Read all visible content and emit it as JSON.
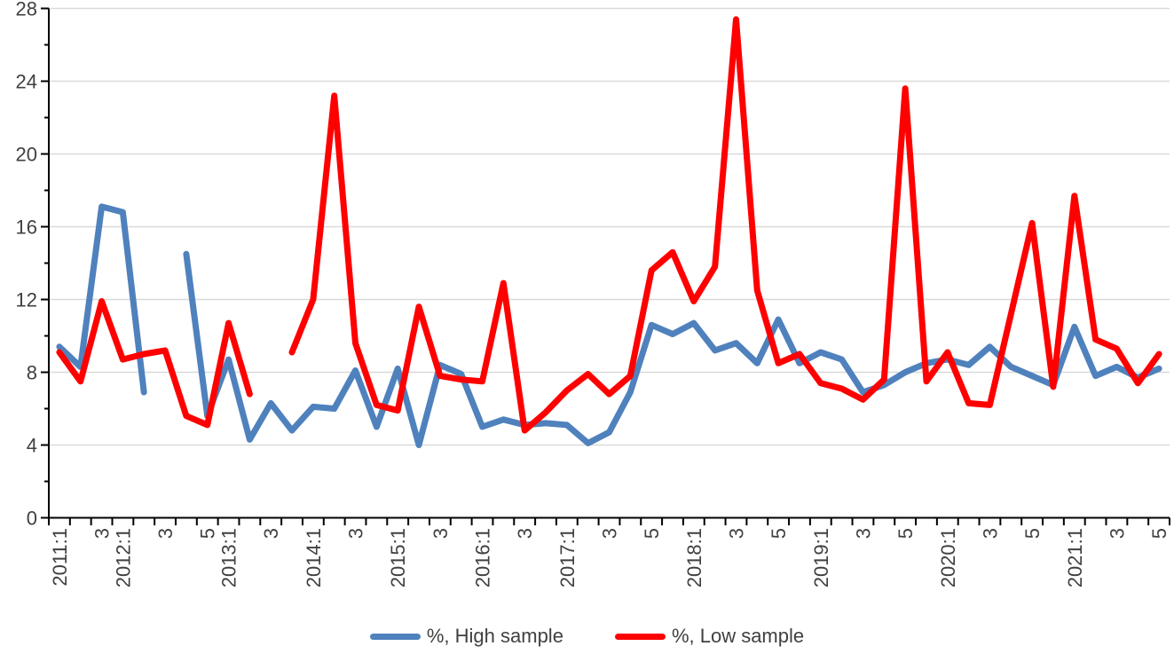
{
  "chart_data": {
    "type": "line",
    "title": "",
    "xlabel": "",
    "ylabel": "",
    "ylim": [
      0,
      28
    ],
    "y_major_step": 4,
    "y_minor_step": 2,
    "y_tick_labels": [
      "0",
      "4",
      "8",
      "12",
      "16",
      "20",
      "24",
      "28"
    ],
    "grid": "horizontal",
    "legend_position": "bottom",
    "n_points": 53,
    "categories": [
      "2011:1",
      "",
      "3",
      "2012:1",
      "",
      "3",
      "",
      "5",
      "2013:1",
      "",
      "3",
      "",
      "2014:1",
      "",
      "3",
      "",
      "2015:1",
      "",
      "3",
      "",
      "2016:1",
      "",
      "3",
      "",
      "2017:1",
      "",
      "3",
      "",
      "5",
      "",
      "2018:1",
      "",
      "3",
      "",
      "5",
      "",
      "2019:1",
      "",
      "3",
      "",
      "5",
      "",
      "2020:1",
      "",
      "3",
      "",
      "5",
      "",
      "2021:1",
      "",
      "3",
      "",
      "5"
    ],
    "series": [
      {
        "name": "%, High sample",
        "color": "#4F81BD",
        "values": [
          9.4,
          8.3,
          17.1,
          16.8,
          6.9,
          null,
          14.5,
          5.6,
          8.7,
          4.3,
          6.3,
          4.8,
          6.1,
          6.0,
          8.1,
          5.0,
          8.2,
          4.0,
          8.4,
          7.9,
          5.0,
          5.4,
          5.1,
          5.2,
          5.1,
          4.1,
          4.7,
          6.9,
          10.6,
          10.1,
          10.7,
          9.2,
          9.6,
          8.5,
          10.9,
          8.5,
          9.1,
          8.7,
          6.9,
          7.3,
          8.0,
          8.5,
          8.7,
          8.4,
          9.4,
          8.3,
          7.8,
          7.3,
          10.5,
          7.8,
          8.3,
          7.7,
          8.2
        ]
      },
      {
        "name": "%, Low sample",
        "color": "#FF0000",
        "values": [
          9.1,
          7.5,
          11.9,
          8.7,
          9.0,
          9.2,
          5.6,
          5.1,
          10.7,
          6.8,
          null,
          9.1,
          12.0,
          23.2,
          9.6,
          6.2,
          5.9,
          11.6,
          7.8,
          7.6,
          7.5,
          12.9,
          4.8,
          5.8,
          7.0,
          7.9,
          6.8,
          7.8,
          13.6,
          14.6,
          11.9,
          13.8,
          27.4,
          12.5,
          8.5,
          9.0,
          7.4,
          7.1,
          6.5,
          7.6,
          23.6,
          7.5,
          9.1,
          6.3,
          6.2,
          11.2,
          16.2,
          7.2,
          17.7,
          9.8,
          9.3,
          7.4,
          9.0
        ]
      }
    ],
    "style": {
      "grid_color": "#D9D9D9",
      "axis_color": "#000000",
      "tick_label_color": "#404040",
      "line_width": 7
    }
  },
  "legend": {
    "high_label": "%, High sample",
    "low_label": "%, Low sample"
  }
}
